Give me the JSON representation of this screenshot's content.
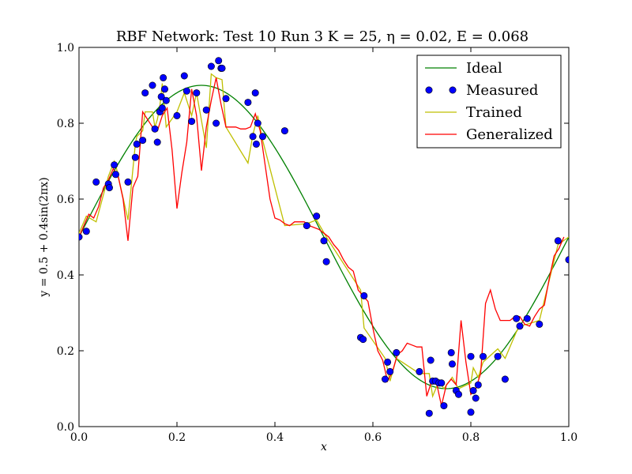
{
  "chart_data": {
    "type": "line",
    "title": "RBF Network: Test 10 Run 3 K = 25, η = 0.02, E = 0.068",
    "xlabel": "x",
    "ylabel": "y = 0.5 + 0.4sin(2πx)",
    "xlim": [
      0.0,
      1.0
    ],
    "ylim": [
      0.0,
      1.0
    ],
    "xticks": [
      "0.0",
      "0.2",
      "0.4",
      "0.6",
      "0.8",
      "1.0"
    ],
    "yticks": [
      "0.0",
      "0.2",
      "0.4",
      "0.6",
      "0.8",
      "1.0"
    ],
    "grid": false,
    "legend_position": "top-right",
    "series": [
      {
        "name": "Ideal",
        "kind": "line",
        "color": "#008000",
        "function": "0.5 + 0.4sin(2πx)"
      },
      {
        "name": "Measured",
        "kind": "markers",
        "color": "#0000ff",
        "x": [
          0.0,
          0.015,
          0.035,
          0.06,
          0.062,
          0.072,
          0.075,
          0.1,
          0.115,
          0.118,
          0.13,
          0.135,
          0.15,
          0.155,
          0.16,
          0.165,
          0.168,
          0.17,
          0.172,
          0.175,
          0.178,
          0.2,
          0.215,
          0.22,
          0.23,
          0.24,
          0.26,
          0.27,
          0.28,
          0.285,
          0.29,
          0.292,
          0.3,
          0.345,
          0.355,
          0.36,
          0.362,
          0.365,
          0.375,
          0.42,
          0.465,
          0.485,
          0.5,
          0.505,
          0.575,
          0.58,
          0.582,
          0.625,
          0.63,
          0.635,
          0.648,
          0.695,
          0.715,
          0.718,
          0.722,
          0.728,
          0.735,
          0.74,
          0.745,
          0.76,
          0.762,
          0.77,
          0.775,
          0.8,
          0.8,
          0.805,
          0.81,
          0.815,
          0.825,
          0.855,
          0.87,
          0.893,
          0.9,
          0.915,
          0.94,
          0.978,
          1.0
        ],
        "y": [
          0.5,
          0.515,
          0.645,
          0.64,
          0.63,
          0.69,
          0.665,
          0.645,
          0.71,
          0.745,
          0.755,
          0.88,
          0.9,
          0.785,
          0.75,
          0.83,
          0.87,
          0.84,
          0.92,
          0.89,
          0.86,
          0.82,
          0.925,
          0.885,
          0.805,
          0.88,
          0.835,
          0.95,
          0.8,
          0.965,
          0.945,
          0.945,
          0.865,
          0.855,
          0.765,
          0.88,
          0.745,
          0.8,
          0.765,
          0.78,
          0.53,
          0.555,
          0.49,
          0.435,
          0.235,
          0.23,
          0.345,
          0.125,
          0.17,
          0.145,
          0.195,
          0.145,
          0.035,
          0.175,
          0.12,
          0.12,
          0.115,
          0.115,
          0.055,
          0.195,
          0.165,
          0.095,
          0.085,
          0.185,
          0.038,
          0.095,
          0.075,
          0.11,
          0.185,
          0.185,
          0.125,
          0.285,
          0.265,
          0.285,
          0.27,
          0.49,
          0.44
        ]
      },
      {
        "name": "Trained",
        "kind": "line",
        "color": "#bfbf00",
        "x": [
          0.0,
          0.015,
          0.035,
          0.06,
          0.072,
          0.075,
          0.1,
          0.115,
          0.118,
          0.13,
          0.135,
          0.15,
          0.155,
          0.16,
          0.165,
          0.17,
          0.178,
          0.2,
          0.215,
          0.23,
          0.24,
          0.26,
          0.27,
          0.28,
          0.292,
          0.3,
          0.345,
          0.355,
          0.365,
          0.375,
          0.42,
          0.465,
          0.485,
          0.505,
          0.575,
          0.582,
          0.625,
          0.635,
          0.648,
          0.695,
          0.715,
          0.722,
          0.735,
          0.745,
          0.762,
          0.775,
          0.8,
          0.805,
          0.815,
          0.825,
          0.855,
          0.87,
          0.893,
          0.9,
          0.915,
          0.94,
          0.978,
          1.0
        ],
        "y": [
          0.51,
          0.555,
          0.54,
          0.66,
          0.7,
          0.69,
          0.545,
          0.745,
          0.765,
          0.78,
          0.83,
          0.83,
          0.79,
          0.81,
          0.845,
          0.905,
          0.79,
          0.83,
          0.88,
          0.82,
          0.88,
          0.735,
          0.93,
          0.92,
          0.915,
          0.79,
          0.695,
          0.77,
          0.82,
          0.755,
          0.53,
          0.535,
          0.545,
          0.5,
          0.36,
          0.26,
          0.18,
          0.12,
          0.18,
          0.14,
          0.14,
          0.08,
          0.12,
          0.1,
          0.13,
          0.1,
          0.115,
          0.155,
          0.13,
          0.17,
          0.205,
          0.18,
          0.25,
          0.265,
          0.27,
          0.28,
          0.48,
          0.5
        ]
      },
      {
        "name": "Generalized",
        "kind": "line",
        "color": "#ff0000",
        "x": [
          0.0,
          0.01,
          0.02,
          0.03,
          0.04,
          0.05,
          0.06,
          0.07,
          0.08,
          0.09,
          0.1,
          0.11,
          0.12,
          0.13,
          0.14,
          0.15,
          0.16,
          0.17,
          0.18,
          0.19,
          0.2,
          0.21,
          0.22,
          0.23,
          0.24,
          0.25,
          0.26,
          0.27,
          0.28,
          0.29,
          0.3,
          0.31,
          0.32,
          0.33,
          0.34,
          0.35,
          0.36,
          0.37,
          0.38,
          0.39,
          0.4,
          0.41,
          0.42,
          0.43,
          0.44,
          0.45,
          0.46,
          0.47,
          0.48,
          0.49,
          0.5,
          0.51,
          0.52,
          0.53,
          0.54,
          0.55,
          0.56,
          0.57,
          0.58,
          0.59,
          0.6,
          0.61,
          0.62,
          0.63,
          0.64,
          0.65,
          0.66,
          0.67,
          0.68,
          0.69,
          0.7,
          0.71,
          0.72,
          0.73,
          0.74,
          0.75,
          0.76,
          0.77,
          0.78,
          0.79,
          0.8,
          0.81,
          0.82,
          0.83,
          0.84,
          0.85,
          0.86,
          0.87,
          0.88,
          0.89,
          0.9,
          0.91,
          0.92,
          0.93,
          0.94,
          0.95,
          0.96,
          0.97,
          0.98,
          0.99
        ],
        "y": [
          0.5,
          0.53,
          0.56,
          0.55,
          0.58,
          0.63,
          0.65,
          0.68,
          0.66,
          0.6,
          0.49,
          0.63,
          0.66,
          0.83,
          0.81,
          0.79,
          0.78,
          0.82,
          0.84,
          0.73,
          0.575,
          0.67,
          0.75,
          0.89,
          0.82,
          0.675,
          0.79,
          0.86,
          0.92,
          0.85,
          0.79,
          0.79,
          0.79,
          0.785,
          0.785,
          0.79,
          0.825,
          0.78,
          0.69,
          0.6,
          0.55,
          0.545,
          0.535,
          0.53,
          0.54,
          0.54,
          0.54,
          0.53,
          0.525,
          0.52,
          0.51,
          0.5,
          0.48,
          0.465,
          0.44,
          0.42,
          0.41,
          0.36,
          0.345,
          0.33,
          0.26,
          0.2,
          0.175,
          0.12,
          0.145,
          0.19,
          0.2,
          0.22,
          0.215,
          0.21,
          0.21,
          0.08,
          0.12,
          0.115,
          0.055,
          0.11,
          0.125,
          0.11,
          0.28,
          0.17,
          0.085,
          0.1,
          0.14,
          0.325,
          0.36,
          0.31,
          0.28,
          0.28,
          0.28,
          0.29,
          0.29,
          0.27,
          0.265,
          0.29,
          0.31,
          0.32,
          0.39,
          0.45,
          0.47,
          0.5
        ]
      }
    ]
  }
}
